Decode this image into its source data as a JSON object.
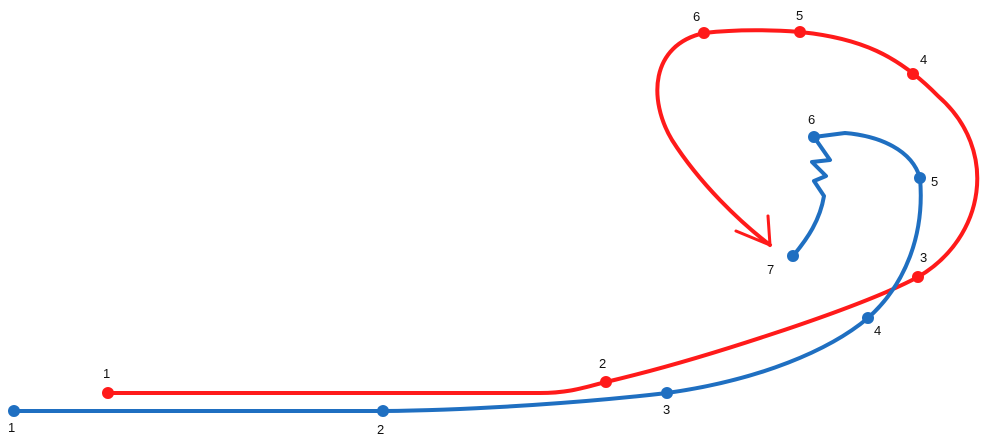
{
  "colors": {
    "red_track": "#ff1a1a",
    "blue_track": "#1f6fc1",
    "label": "#111111",
    "background": "#ffffff"
  },
  "red_track": {
    "points": [
      "1",
      "2",
      "3",
      "4",
      "5",
      "6"
    ],
    "end_marker": "arrow-head"
  },
  "blue_track": {
    "points": [
      "1",
      "2",
      "3",
      "4",
      "5",
      "6",
      "7"
    ]
  }
}
